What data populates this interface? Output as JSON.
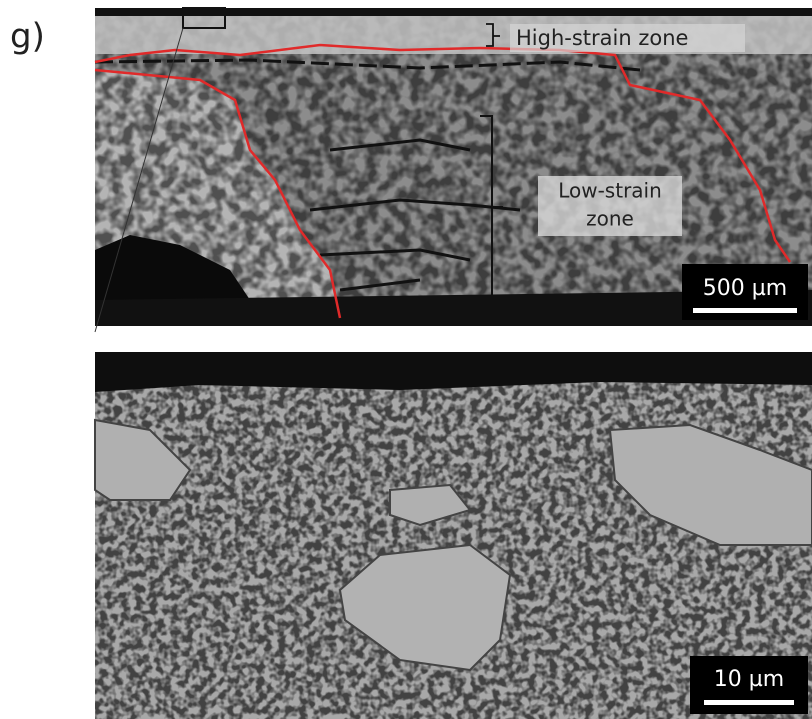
{
  "panel_label": "g)",
  "top_image": {
    "annotations": {
      "high_strain": "High-strain zone",
      "low_strain": [
        "Low-strain",
        "zone"
      ]
    },
    "scale_bar": "500 µm"
  },
  "bottom_image": {
    "scale_bar": "10 µm"
  }
}
